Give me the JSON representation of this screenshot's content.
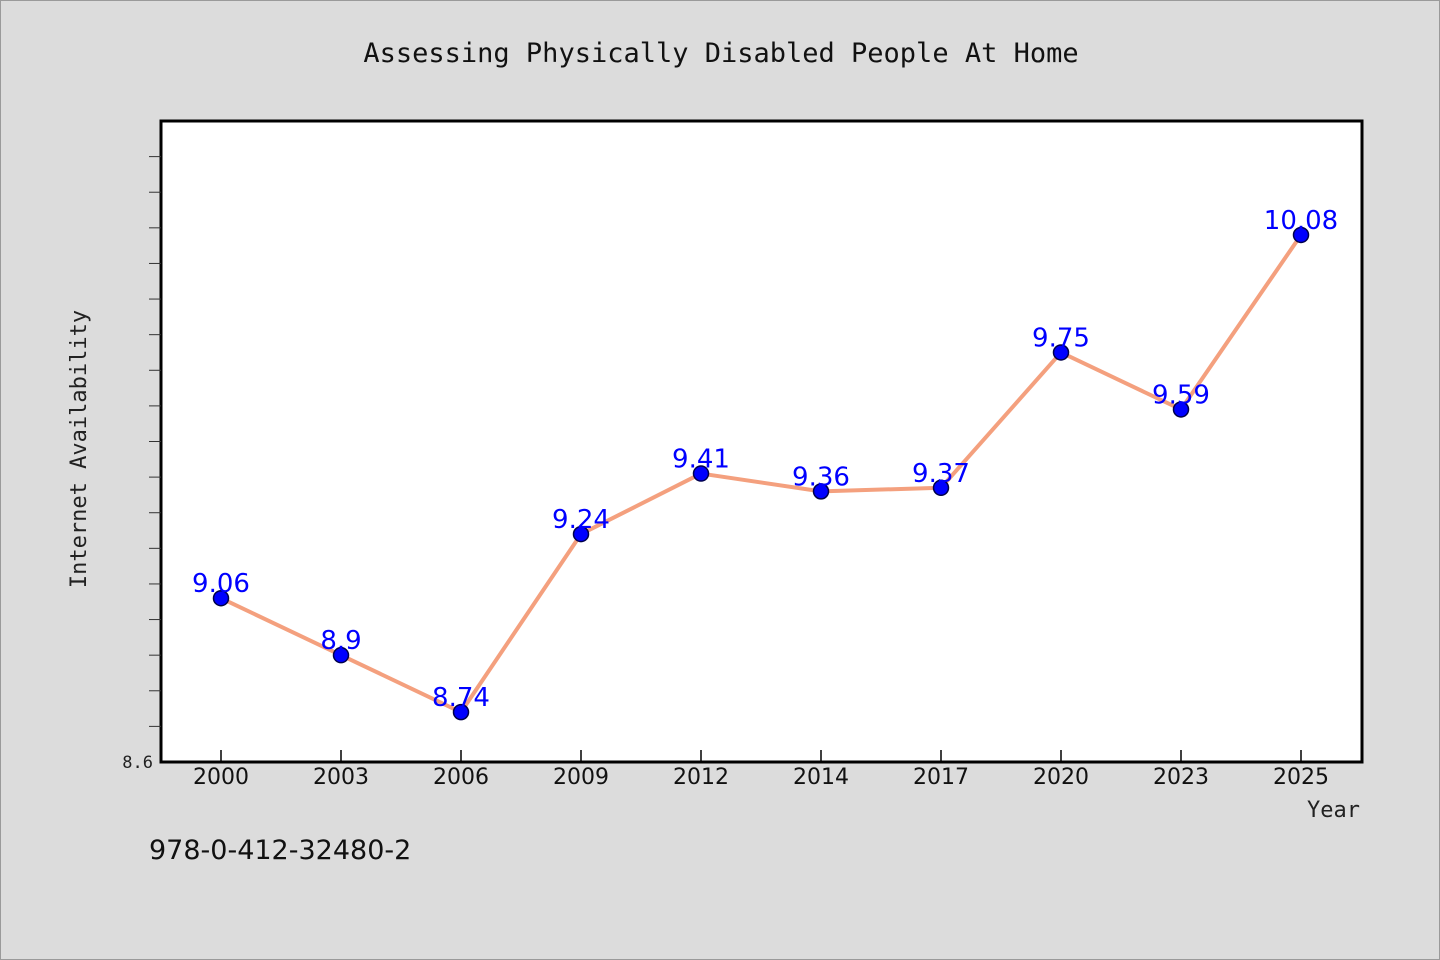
{
  "chart_data": {
    "type": "line",
    "title": "Assessing Physically Disabled People At Home",
    "xlabel": "Year",
    "ylabel": "Internet Availability",
    "categories": [
      "2000",
      "2003",
      "2006",
      "2009",
      "2012",
      "2014",
      "2017",
      "2020",
      "2023",
      "2025"
    ],
    "values": [
      9.06,
      8.9,
      8.74,
      9.24,
      9.41,
      9.36,
      9.37,
      9.75,
      9.59,
      10.08
    ],
    "data_labels": [
      "9.06",
      "8.9",
      "8.74",
      "9.24",
      "9.41",
      "9.36",
      "9.37",
      "9.75",
      "9.59",
      "10.08"
    ],
    "ylim": [
      8.6,
      10.4
    ],
    "yticks_labeled": [
      "8.6"
    ],
    "grid": false,
    "legend": "none",
    "colors": {
      "line": "#f4a07e",
      "marker": "#0000ff",
      "label": "#0000ff",
      "plot_background": "#ffffff",
      "page_background": "#dcdcdc"
    }
  },
  "footer": {
    "isbn": "978-0-412-32480-2"
  }
}
